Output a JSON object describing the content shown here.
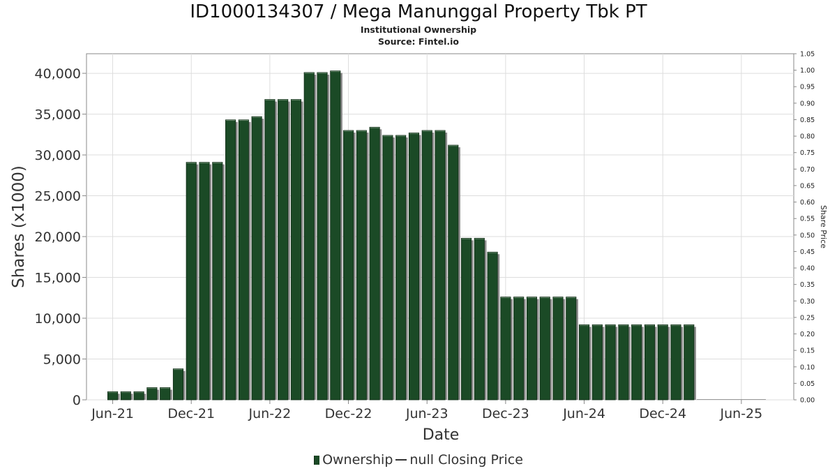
{
  "chart_data": {
    "type": "bar",
    "title": "ID1000134307 / Mega Manunggal Property Tbk PT",
    "subtitle": "Institutional Ownership",
    "source": "Source: Fintel.io",
    "xlabel": "Date",
    "ylabel": "Shares (x1000)",
    "y2label": "Share Price",
    "ylim": [
      0,
      42400
    ],
    "y2lim": [
      0,
      1.05
    ],
    "yticks": [
      "0",
      "5,000",
      "10,000",
      "15,000",
      "20,000",
      "25,000",
      "30,000",
      "35,000",
      "40,000"
    ],
    "y2ticks": [
      "0.00",
      "0.05",
      "0.10",
      "0.15",
      "0.20",
      "0.25",
      "0.30",
      "0.35",
      "0.40",
      "0.45",
      "0.50",
      "0.55",
      "0.60",
      "0.65",
      "0.70",
      "0.75",
      "0.80",
      "0.85",
      "0.90",
      "0.95",
      "1.00",
      "1.05"
    ],
    "xtick_labels": [
      "Jun-21",
      "Dec-21",
      "Jun-22",
      "Dec-22",
      "Jun-23",
      "Dec-23",
      "Jun-24",
      "Dec-24",
      "Jun-25"
    ],
    "x_range": [
      "2021-04",
      "2025-10"
    ],
    "grid": true,
    "legend_position": "bottom",
    "series": [
      {
        "name": "Ownership",
        "color": "#1b4a26",
        "points": [
          [
            "2021-06",
            1000
          ],
          [
            "2021-07",
            1000
          ],
          [
            "2021-08",
            1000
          ],
          [
            "2021-09",
            1500
          ],
          [
            "2021-10",
            1500
          ],
          [
            "2021-11",
            3800
          ],
          [
            "2021-12",
            29100
          ],
          [
            "2022-01",
            29100
          ],
          [
            "2022-02",
            29100
          ],
          [
            "2022-03",
            34300
          ],
          [
            "2022-04",
            34300
          ],
          [
            "2022-05",
            34700
          ],
          [
            "2022-06",
            36800
          ],
          [
            "2022-07",
            36800
          ],
          [
            "2022-08",
            36800
          ],
          [
            "2022-09",
            40100
          ],
          [
            "2022-10",
            40100
          ],
          [
            "2022-11",
            40300
          ],
          [
            "2022-12",
            33000
          ],
          [
            "2023-01",
            33000
          ],
          [
            "2023-02",
            33400
          ],
          [
            "2023-03",
            32400
          ],
          [
            "2023-04",
            32400
          ],
          [
            "2023-05",
            32700
          ],
          [
            "2023-06",
            33000
          ],
          [
            "2023-07",
            33000
          ],
          [
            "2023-08",
            31200
          ],
          [
            "2023-09",
            19800
          ],
          [
            "2023-10",
            19800
          ],
          [
            "2023-11",
            18100
          ],
          [
            "2023-12",
            12600
          ],
          [
            "2024-01",
            12600
          ],
          [
            "2024-02",
            12600
          ],
          [
            "2024-03",
            12600
          ],
          [
            "2024-04",
            12600
          ],
          [
            "2024-05",
            12600
          ],
          [
            "2024-06",
            9200
          ],
          [
            "2024-07",
            9200
          ],
          [
            "2024-08",
            9200
          ],
          [
            "2024-09",
            9200
          ],
          [
            "2024-10",
            9200
          ],
          [
            "2024-11",
            9200
          ],
          [
            "2024-12",
            9200
          ],
          [
            "2025-01",
            9200
          ],
          [
            "2025-02",
            9200
          ]
        ]
      },
      {
        "name": "null Closing Price",
        "color": "#333333",
        "values": []
      }
    ]
  },
  "legend": {
    "ownership": "Ownership",
    "price": "null Closing Price"
  }
}
